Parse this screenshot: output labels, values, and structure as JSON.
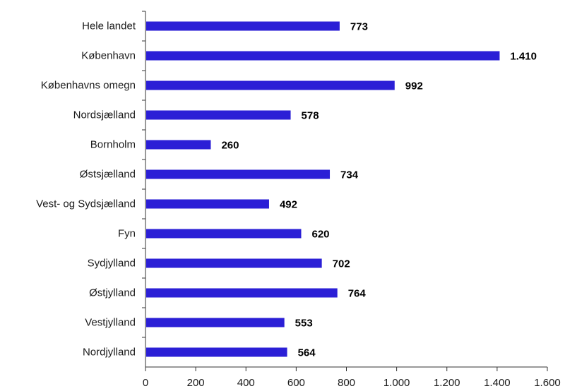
{
  "chart_data": {
    "type": "bar",
    "orientation": "horizontal",
    "categories": [
      "Hele landet",
      "København",
      "Københavns omegn",
      "Nordsjælland",
      "Bornholm",
      "Østsjælland",
      "Vest- og Sydsjælland",
      "Fyn",
      "Sydjylland",
      "Østjylland",
      "Vestjylland",
      "Nordjylland"
    ],
    "values": [
      773,
      1410,
      992,
      578,
      260,
      734,
      492,
      620,
      702,
      764,
      553,
      564
    ],
    "value_labels": [
      "773",
      "1.410",
      "992",
      "578",
      "260",
      "734",
      "492",
      "620",
      "702",
      "764",
      "553",
      "564"
    ],
    "xlim": [
      0,
      1600
    ],
    "x_ticks": [
      0,
      200,
      400,
      600,
      800,
      1000,
      1200,
      1400,
      1600
    ],
    "x_tick_labels": [
      "0",
      "200",
      "400",
      "600",
      "800",
      "1.000",
      "1.200",
      "1.400",
      "1.600"
    ],
    "title": "",
    "xlabel": "",
    "ylabel": "",
    "grid": false,
    "legend": "none",
    "bar_color": "#2b1fd6"
  }
}
